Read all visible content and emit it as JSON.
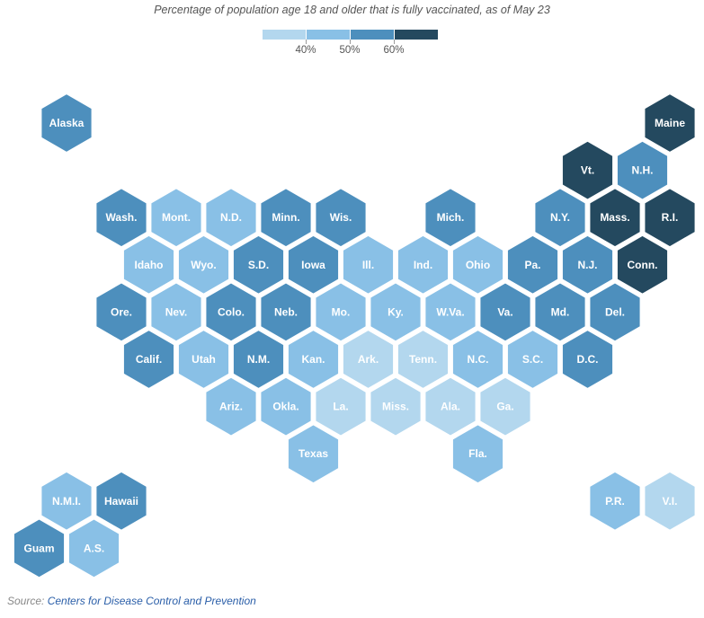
{
  "subtitle": "Percentage of population age 18 and older that is fully vaccinated, as of May 23",
  "legend": {
    "thresholds": [
      "40%",
      "50%",
      "60%"
    ],
    "colors": [
      "#b3d7ee",
      "#89c0e6",
      "#4d8fbd",
      "#24495f"
    ]
  },
  "source": {
    "prefix": "Source: ",
    "link_text": "Centers for Disease Control and Prevention"
  },
  "states": [
    {
      "label": "Alaska",
      "row": 0,
      "col": 0.5,
      "bin": 2
    },
    {
      "label": "Maine",
      "row": 0,
      "col": 11.5,
      "bin": 3
    },
    {
      "label": "Vt.",
      "row": 1,
      "col": 10,
      "bin": 3
    },
    {
      "label": "N.H.",
      "row": 1,
      "col": 11,
      "bin": 2
    },
    {
      "label": "Wash.",
      "row": 2,
      "col": 1.5,
      "bin": 2
    },
    {
      "label": "Mont.",
      "row": 2,
      "col": 2.5,
      "bin": 1
    },
    {
      "label": "N.D.",
      "row": 2,
      "col": 3.5,
      "bin": 1
    },
    {
      "label": "Minn.",
      "row": 2,
      "col": 4.5,
      "bin": 2
    },
    {
      "label": "Wis.",
      "row": 2,
      "col": 5.5,
      "bin": 2
    },
    {
      "label": "Mich.",
      "row": 2,
      "col": 7.5,
      "bin": 2
    },
    {
      "label": "N.Y.",
      "row": 2,
      "col": 9.5,
      "bin": 2
    },
    {
      "label": "Mass.",
      "row": 2,
      "col": 10.5,
      "bin": 3
    },
    {
      "label": "R.I.",
      "row": 2,
      "col": 11.5,
      "bin": 3
    },
    {
      "label": "Idaho",
      "row": 3,
      "col": 2,
      "bin": 1
    },
    {
      "label": "Wyo.",
      "row": 3,
      "col": 3,
      "bin": 1
    },
    {
      "label": "S.D.",
      "row": 3,
      "col": 4,
      "bin": 2
    },
    {
      "label": "Iowa",
      "row": 3,
      "col": 5,
      "bin": 2
    },
    {
      "label": "Ill.",
      "row": 3,
      "col": 6,
      "bin": 1
    },
    {
      "label": "Ind.",
      "row": 3,
      "col": 7,
      "bin": 1
    },
    {
      "label": "Ohio",
      "row": 3,
      "col": 8,
      "bin": 1
    },
    {
      "label": "Pa.",
      "row": 3,
      "col": 9,
      "bin": 2
    },
    {
      "label": "N.J.",
      "row": 3,
      "col": 10,
      "bin": 2
    },
    {
      "label": "Conn.",
      "row": 3,
      "col": 11,
      "bin": 3
    },
    {
      "label": "Ore.",
      "row": 4,
      "col": 1.5,
      "bin": 2
    },
    {
      "label": "Nev.",
      "row": 4,
      "col": 2.5,
      "bin": 1
    },
    {
      "label": "Colo.",
      "row": 4,
      "col": 3.5,
      "bin": 2
    },
    {
      "label": "Neb.",
      "row": 4,
      "col": 4.5,
      "bin": 2
    },
    {
      "label": "Mo.",
      "row": 4,
      "col": 5.5,
      "bin": 1
    },
    {
      "label": "Ky.",
      "row": 4,
      "col": 6.5,
      "bin": 1
    },
    {
      "label": "W.Va.",
      "row": 4,
      "col": 7.5,
      "bin": 1
    },
    {
      "label": "Va.",
      "row": 4,
      "col": 8.5,
      "bin": 2
    },
    {
      "label": "Md.",
      "row": 4,
      "col": 9.5,
      "bin": 2
    },
    {
      "label": "Del.",
      "row": 4,
      "col": 10.5,
      "bin": 2
    },
    {
      "label": "Calif.",
      "row": 5,
      "col": 2,
      "bin": 2
    },
    {
      "label": "Utah",
      "row": 5,
      "col": 3,
      "bin": 1
    },
    {
      "label": "N.M.",
      "row": 5,
      "col": 4,
      "bin": 2
    },
    {
      "label": "Kan.",
      "row": 5,
      "col": 5,
      "bin": 1
    },
    {
      "label": "Ark.",
      "row": 5,
      "col": 6,
      "bin": 0
    },
    {
      "label": "Tenn.",
      "row": 5,
      "col": 7,
      "bin": 0
    },
    {
      "label": "N.C.",
      "row": 5,
      "col": 8,
      "bin": 1
    },
    {
      "label": "S.C.",
      "row": 5,
      "col": 9,
      "bin": 1
    },
    {
      "label": "D.C.",
      "row": 5,
      "col": 10,
      "bin": 2
    },
    {
      "label": "Ariz.",
      "row": 6,
      "col": 3.5,
      "bin": 1
    },
    {
      "label": "Okla.",
      "row": 6,
      "col": 4.5,
      "bin": 1
    },
    {
      "label": "La.",
      "row": 6,
      "col": 5.5,
      "bin": 0
    },
    {
      "label": "Miss.",
      "row": 6,
      "col": 6.5,
      "bin": 0
    },
    {
      "label": "Ala.",
      "row": 6,
      "col": 7.5,
      "bin": 0
    },
    {
      "label": "Ga.",
      "row": 6,
      "col": 8.5,
      "bin": 0
    },
    {
      "label": "Texas",
      "row": 7,
      "col": 5,
      "bin": 1
    },
    {
      "label": "Fla.",
      "row": 7,
      "col": 8,
      "bin": 1
    },
    {
      "label": "N.M.I.",
      "row": 8,
      "col": 0.5,
      "bin": 1
    },
    {
      "label": "Hawaii",
      "row": 8,
      "col": 1.5,
      "bin": 2
    },
    {
      "label": "P.R.",
      "row": 8,
      "col": 10.5,
      "bin": 1
    },
    {
      "label": "V.I.",
      "row": 8,
      "col": 11.5,
      "bin": 0
    },
    {
      "label": "Guam",
      "row": 9,
      "col": 0,
      "bin": 2
    },
    {
      "label": "A.S.",
      "row": 9,
      "col": 1,
      "bin": 1
    }
  ]
}
